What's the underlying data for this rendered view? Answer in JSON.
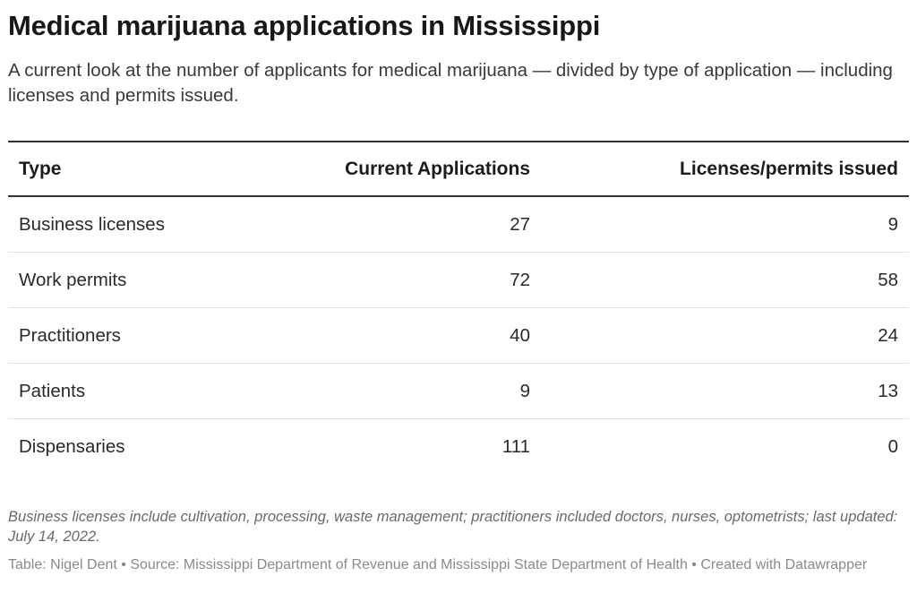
{
  "chart_data": {
    "type": "table",
    "title": "Medical marijuana applications in Mississippi",
    "subtitle": "A current look at the number of applicants for medical marijuana — divided by type of application — including licenses and permits issued.",
    "columns": [
      "Type",
      "Current Applications",
      "Licenses/permits issued"
    ],
    "rows": [
      {
        "type": "Business licenses",
        "current_applications": 27,
        "issued": 9
      },
      {
        "type": "Work permits",
        "current_applications": 72,
        "issued": 58
      },
      {
        "type": "Practitioners",
        "current_applications": 40,
        "issued": 24
      },
      {
        "type": "Patients",
        "current_applications": 9,
        "issued": 13
      },
      {
        "type": "Dispensaries",
        "current_applications": 111,
        "issued": 0
      }
    ],
    "notes": "Business licenses include cultivation, processing, waste management; practitioners included doctors, nurses, optometrists; last updated: July 14, 2022.",
    "credits": "Table: Nigel Dent • Source: Mississippi Department of Revenue and Mississippi State Department of Health • Created with Datawrapper"
  }
}
